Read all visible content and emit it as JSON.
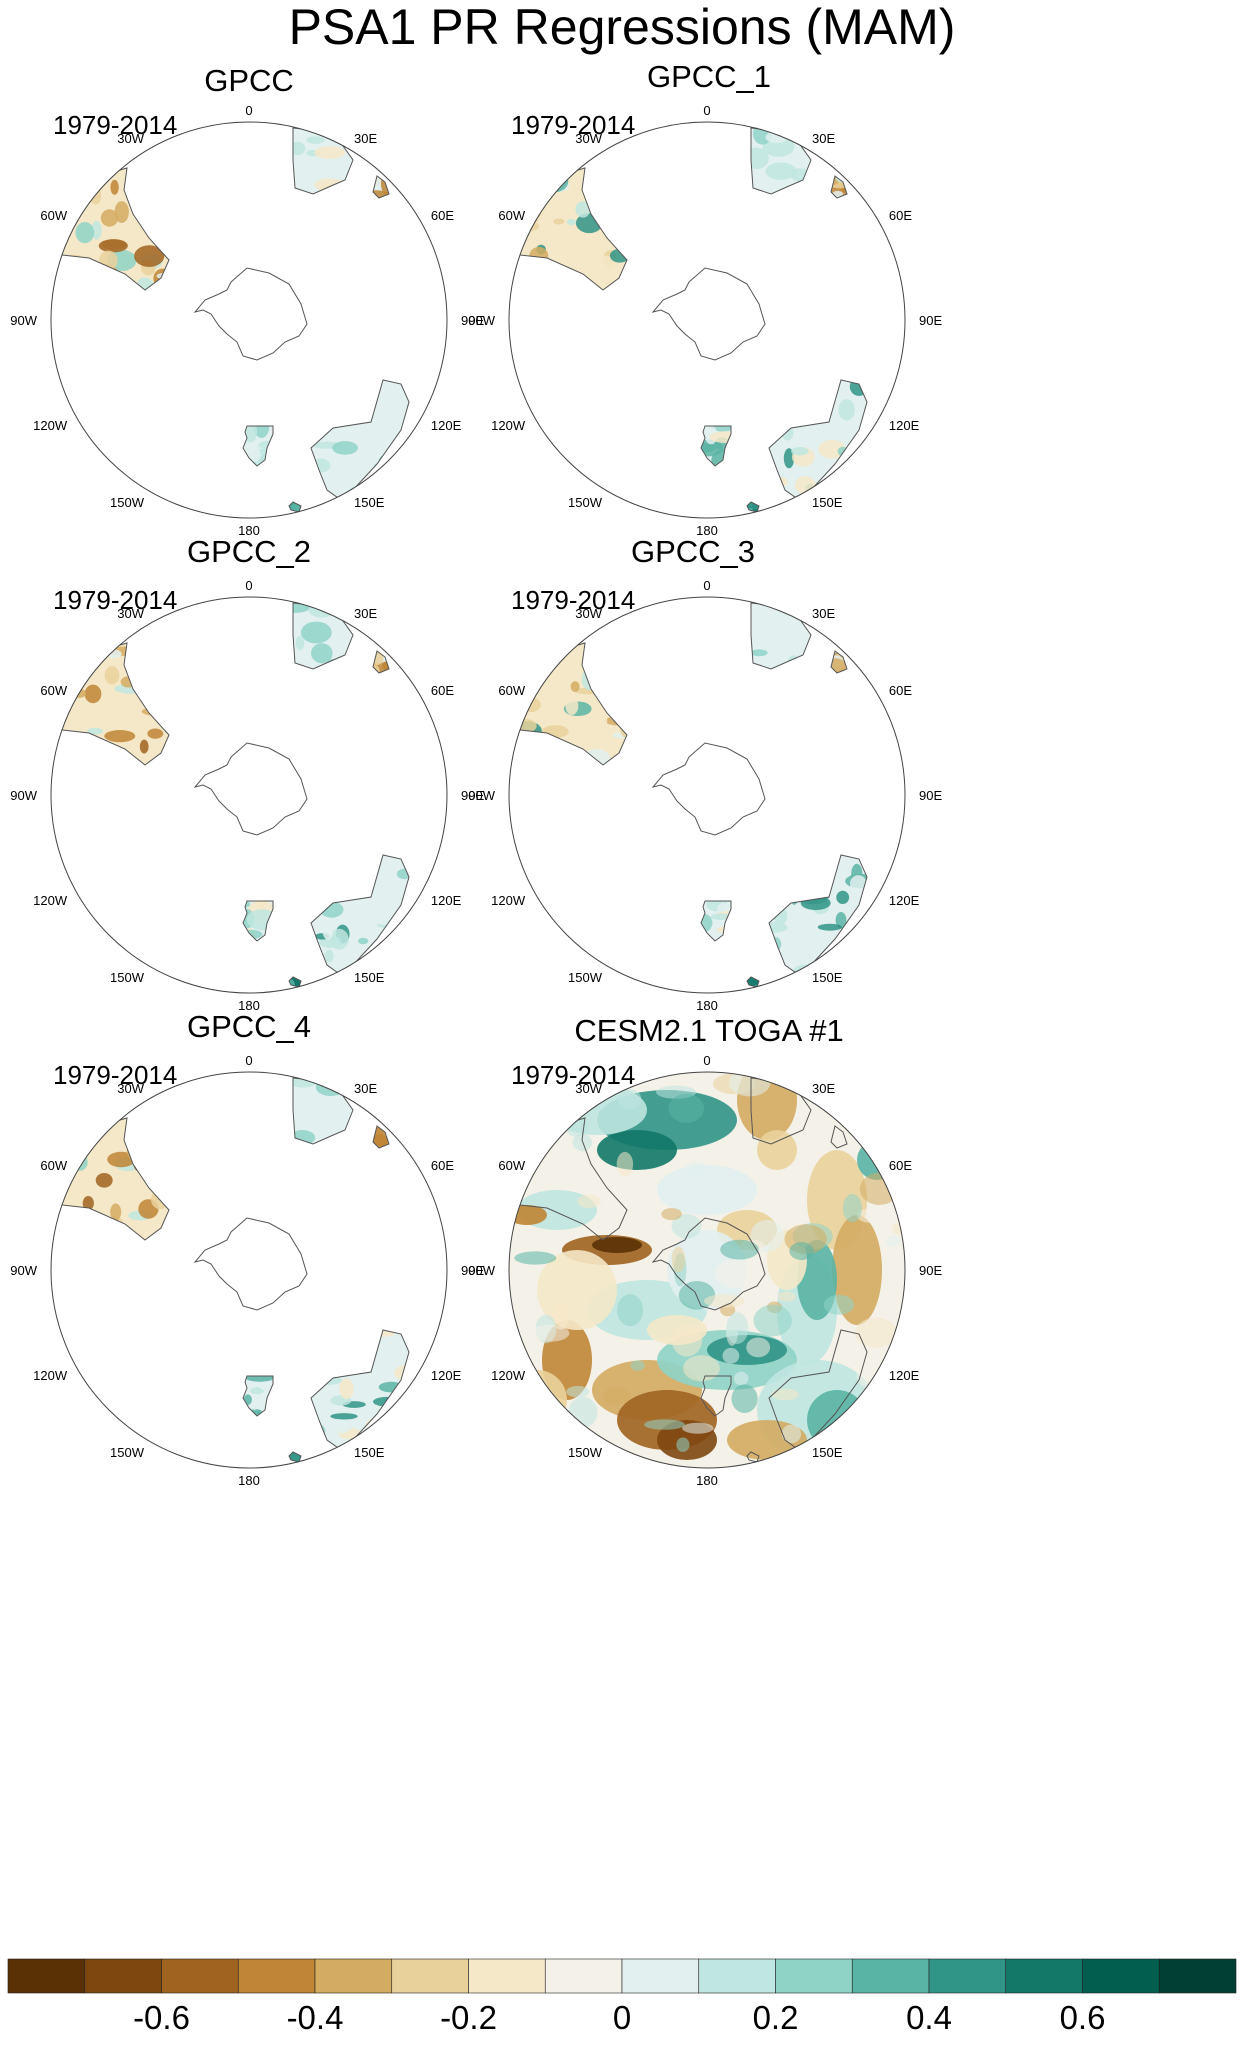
{
  "chart_data": {
    "type": "polar-map",
    "title": "PSA1 PR Regressions (MAM)",
    "projection": "south-polar-stereographic",
    "longitude_labels": [
      "0",
      "30E",
      "60E",
      "90E",
      "120E",
      "150E",
      "180",
      "150W",
      "120W",
      "90W",
      "60W",
      "30W"
    ],
    "panels": [
      {
        "title": "GPCC",
        "period": "1979-2014",
        "coverage": "land-only"
      },
      {
        "title": "GPCC_1",
        "period": "1979-2014",
        "coverage": "land-only"
      },
      {
        "title": "GPCC_2",
        "period": "1979-2014",
        "coverage": "land-only"
      },
      {
        "title": "GPCC_3",
        "period": "1979-2014",
        "coverage": "land-only"
      },
      {
        "title": "GPCC_4",
        "period": "1979-2014",
        "coverage": "land-only"
      },
      {
        "title": "CESM2.1 TOGA #1",
        "period": "1979-2014",
        "coverage": "global"
      }
    ],
    "colorbar": {
      "levels": [
        -0.7,
        -0.6,
        -0.5,
        -0.4,
        -0.3,
        -0.2,
        -0.1,
        0,
        0.1,
        0.2,
        0.3,
        0.4,
        0.5,
        0.6,
        0.7
      ],
      "tick_labels": [
        "-0.6",
        "-0.4",
        "-0.2",
        "0",
        "0.2",
        "0.4",
        "0.6"
      ],
      "tick_values": [
        -0.6,
        -0.4,
        -0.2,
        0,
        0.2,
        0.4,
        0.6
      ],
      "colors": [
        "#5a3105",
        "#7e4710",
        "#a06320",
        "#c08535",
        "#d4ab62",
        "#e9d19b",
        "#f5e8c8",
        "#f4f1e8",
        "#e2f0ef",
        "#bfe6e0",
        "#8fd3c7",
        "#5ab4a5",
        "#309486",
        "#127868",
        "#025e4f",
        "#013f33"
      ]
    }
  }
}
